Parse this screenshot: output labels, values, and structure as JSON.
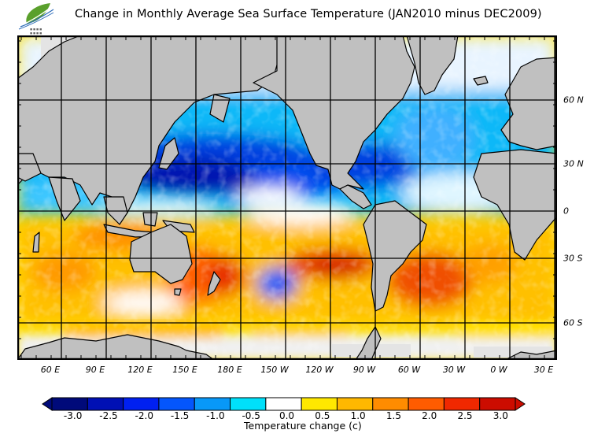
{
  "header": {
    "title": "Change in Monthly Average Sea Surface Temperature (JAN2010 minus DEC2009)",
    "logo_icon": "leaf-wave-logo"
  },
  "map": {
    "projection": "cylindrical",
    "land_color": "#c0c0c0",
    "ice_color": "#e4e4e4",
    "longitude_labels": [
      "60 E",
      "90 E",
      "120 E",
      "150 E",
      "180 E",
      "150 W",
      "120 W",
      "90 W",
      "60 W",
      "30 W",
      "0 W",
      "30 E"
    ],
    "latitude_labels": [
      "60 N",
      "30 N",
      "0",
      "30 S",
      "60 S"
    ]
  },
  "colorbar": {
    "label": "Temperature change  (c)",
    "ticks": [
      "-3.0",
      "-2.5",
      "-2.0",
      "-1.5",
      "-1.0",
      "-0.5",
      "0.0",
      "0.5",
      "1.0",
      "1.5",
      "2.0",
      "2.5",
      "3.0"
    ],
    "colors": [
      "#000a7a",
      "#0010b4",
      "#0020f0",
      "#0456fc",
      "#0898f8",
      "#00e0fa",
      "#ffffff",
      "#ffe800",
      "#ffb800",
      "#ff8c00",
      "#ff5c00",
      "#f02800",
      "#cc0c00"
    ],
    "under_color": "#000a7a",
    "over_color": "#cc0c00"
  }
}
